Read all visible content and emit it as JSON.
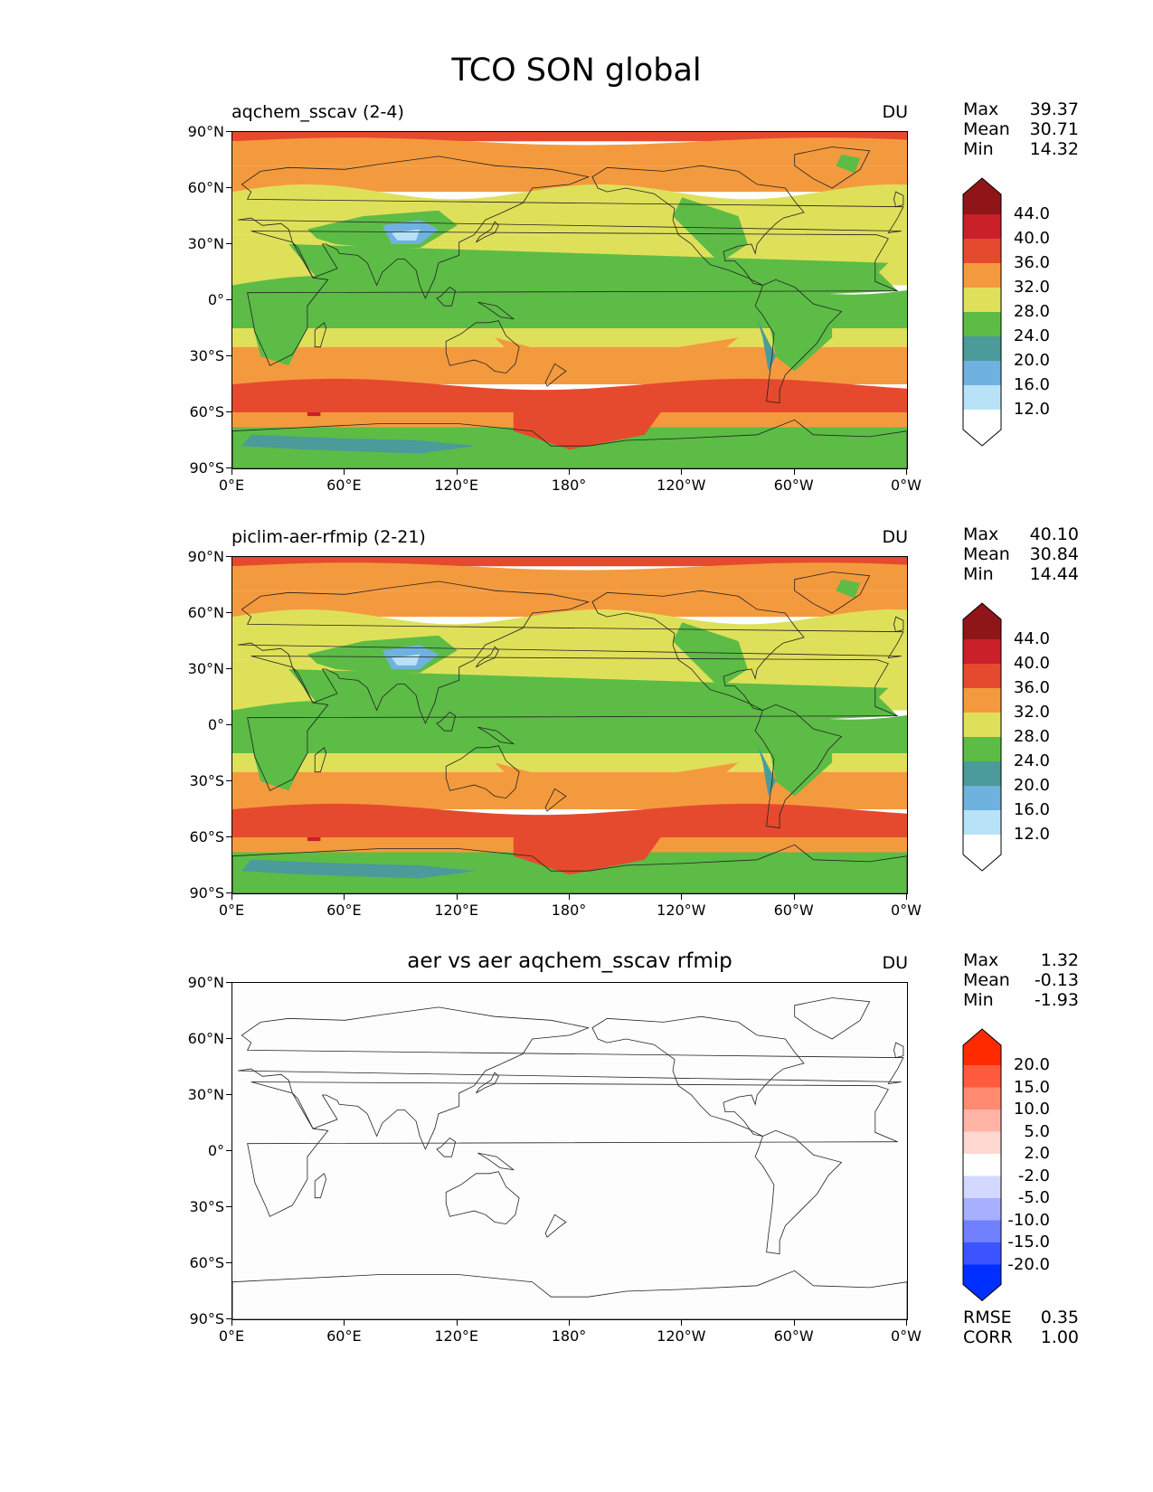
{
  "figure": {
    "title": "TCO SON global"
  },
  "axes": {
    "lat_ticks": [
      "90°N",
      "60°N",
      "30°N",
      "0°",
      "30°S",
      "60°S",
      "90°S"
    ],
    "lon_ticks": [
      "0°E",
      "60°E",
      "120°E",
      "180°",
      "120°W",
      "60°W",
      "0°W"
    ]
  },
  "panels": [
    {
      "title": "aqchem_sscav (2-4)",
      "units": "DU",
      "stats": {
        "max_label": "Max",
        "max": "39.37",
        "mean_label": "Mean",
        "mean": "30.71",
        "min_label": "Min",
        "min": "14.32"
      },
      "colorbar": {
        "labels": [
          "44.0",
          "40.0",
          "36.0",
          "32.0",
          "28.0",
          "24.0",
          "20.0",
          "16.0",
          "12.0"
        ],
        "colors": [
          "#8f1518",
          "#c9202a",
          "#e64a2e",
          "#f49a3e",
          "#dfe05a",
          "#5cbc46",
          "#4a9b9a",
          "#6fb1df",
          "#b8e2f7",
          "#ffffff"
        ]
      }
    },
    {
      "title": "piclim-aer-rfmip (2-21)",
      "units": "DU",
      "stats": {
        "max_label": "Max",
        "max": "40.10",
        "mean_label": "Mean",
        "mean": "30.84",
        "min_label": "Min",
        "min": "14.44"
      },
      "colorbar": {
        "labels": [
          "44.0",
          "40.0",
          "36.0",
          "32.0",
          "28.0",
          "24.0",
          "20.0",
          "16.0",
          "12.0"
        ],
        "colors": [
          "#8f1518",
          "#c9202a",
          "#e64a2e",
          "#f49a3e",
          "#dfe05a",
          "#5cbc46",
          "#4a9b9a",
          "#6fb1df",
          "#b8e2f7",
          "#ffffff"
        ]
      }
    },
    {
      "title": "aer vs aer aqchem_sscav rfmip",
      "units": "DU",
      "stats": {
        "max_label": "Max",
        "max": "1.32",
        "mean_label": "Mean",
        "mean": "-0.13",
        "min_label": "Min",
        "min": "-1.93"
      },
      "colorbar": {
        "labels": [
          "20.0",
          "15.0",
          "10.0",
          "5.0",
          "2.0",
          "-2.0",
          "-5.0",
          "-10.0",
          "-15.0",
          "-20.0"
        ],
        "colors": [
          "#ff2a00",
          "#ff5a3c",
          "#ff8a70",
          "#ffb4a6",
          "#ffd8d2",
          "#ffffff",
          "#d2d8ff",
          "#a6b0ff",
          "#7080ff",
          "#3c54ff",
          "#0030ff"
        ]
      },
      "footer": {
        "rmse_label": "RMSE",
        "rmse": "0.35",
        "corr_label": "CORR",
        "corr": "1.00"
      }
    }
  ],
  "colors": {
    "p1": [
      "#e64a2e",
      "#f49a3e",
      "#dfe05a",
      "#5cbc46",
      "#4a9b9a",
      "#6fb1df",
      "#b8e2f7",
      "#c9202a"
    ],
    "diff_bg": "#fdfdfd",
    "coast": "#222222"
  }
}
